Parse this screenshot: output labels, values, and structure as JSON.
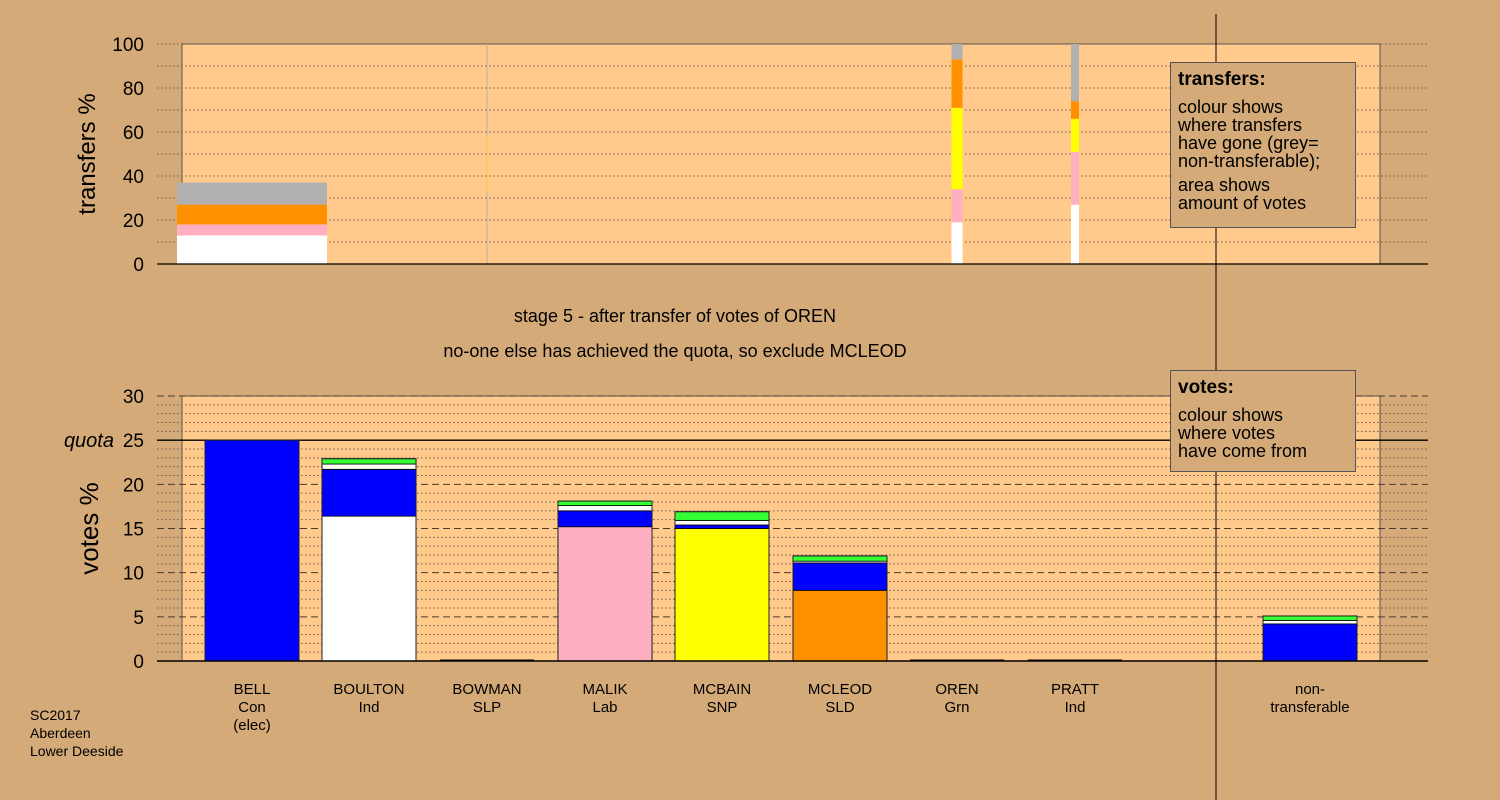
{
  "chart_data": [
    {
      "type": "bar",
      "stacked": true,
      "title": "",
      "ylabel": "transfers %",
      "ylim": [
        0,
        100
      ],
      "yticks": [
        0,
        20,
        40,
        60,
        80,
        100
      ],
      "grid": true,
      "categories": [
        "BELL",
        "BOULTON",
        "BOWMAN",
        "MALIK",
        "MCBAIN",
        "MCLEOD",
        "OREN",
        "PRATT"
      ],
      "series": [
        {
          "color": "#ffffff",
          "values": [
            13,
            0,
            0,
            0,
            0,
            19,
            0,
            27
          ]
        },
        {
          "color": "#ffb0c0",
          "values": [
            5,
            0,
            0,
            0,
            0,
            15,
            0,
            24
          ]
        },
        {
          "color": "#ffff00",
          "values": [
            0,
            0,
            0,
            0,
            0,
            37,
            0,
            15
          ]
        },
        {
          "color": "#ff9000",
          "values": [
            9,
            0,
            0,
            0,
            0,
            22,
            0,
            8
          ]
        },
        {
          "color": "#b0b0b0",
          "values": [
            10,
            0,
            0,
            0,
            0,
            7,
            0,
            26
          ]
        }
      ],
      "legend": {
        "title": "transfers:",
        "lines1": [
          "colour shows",
          "where transfers",
          "have gone (grey=",
          "non-transferable);"
        ],
        "lines2": [
          "area shows",
          "amount of votes"
        ],
        "placement": "top-right"
      }
    },
    {
      "type": "bar",
      "stacked": true,
      "title": "",
      "ylabel": "votes %",
      "ylim": [
        0,
        30
      ],
      "yticks": [
        0,
        5,
        10,
        15,
        20,
        25,
        30
      ],
      "grid": true,
      "quota": {
        "label": "quota",
        "value": 25
      },
      "candidates": [
        {
          "name": "BELL",
          "party": "Con",
          "note": "(elec)"
        },
        {
          "name": "BOULTON",
          "party": "Ind",
          "note": ""
        },
        {
          "name": "BOWMAN",
          "party": "SLP",
          "note": ""
        },
        {
          "name": "MALIK",
          "party": "Lab",
          "note": ""
        },
        {
          "name": "MCBAIN",
          "party": "SNP",
          "note": ""
        },
        {
          "name": "MCLEOD",
          "party": "SLD",
          "note": ""
        },
        {
          "name": "OREN",
          "party": "Grn",
          "note": ""
        },
        {
          "name": "PRATT",
          "party": "Ind",
          "note": ""
        }
      ],
      "nontransferable_label": [
        "non-",
        "transferable"
      ],
      "series": [
        {
          "color": "#0000ff",
          "values": [
            25,
            0,
            0,
            0,
            0,
            0,
            0,
            0,
            0
          ]
        },
        {
          "color": "#ffffff",
          "values": [
            0,
            16.4,
            0,
            0,
            0,
            0,
            0,
            0,
            0
          ]
        },
        {
          "color": "#ffb0c0",
          "values": [
            0,
            0,
            0,
            15.2,
            0,
            0,
            0,
            0,
            0
          ]
        },
        {
          "color": "#ffff00",
          "values": [
            0,
            0,
            0,
            0,
            15.0,
            0,
            0,
            0,
            0
          ]
        },
        {
          "color": "#ff9000",
          "values": [
            0,
            0,
            0,
            0,
            0,
            8.0,
            0,
            0,
            0
          ]
        },
        {
          "color": "#0000ff",
          "values": [
            0,
            5.3,
            0,
            1.8,
            0.4,
            3.1,
            0,
            0,
            4.2
          ]
        },
        {
          "color": "#ffffff",
          "values": [
            0,
            0.6,
            0,
            0.6,
            0.5,
            0.2,
            0,
            0,
            0.4
          ]
        },
        {
          "color": "#33ff33",
          "values": [
            0,
            0.6,
            0,
            0.5,
            1.0,
            0.6,
            0,
            0,
            0.5
          ]
        }
      ],
      "legend": {
        "title": "votes:",
        "lines": [
          "colour shows",
          "where votes",
          "have come from"
        ],
        "placement": "top-right"
      }
    }
  ],
  "captions": {
    "stage": "stage 5 - after transfer of votes of OREN",
    "decision": "no-one else has achieved the quota, so exclude MCLEOD"
  },
  "footer": {
    "line1": "SC2017",
    "line2": "Aberdeen",
    "line3": "Lower Deeside"
  }
}
